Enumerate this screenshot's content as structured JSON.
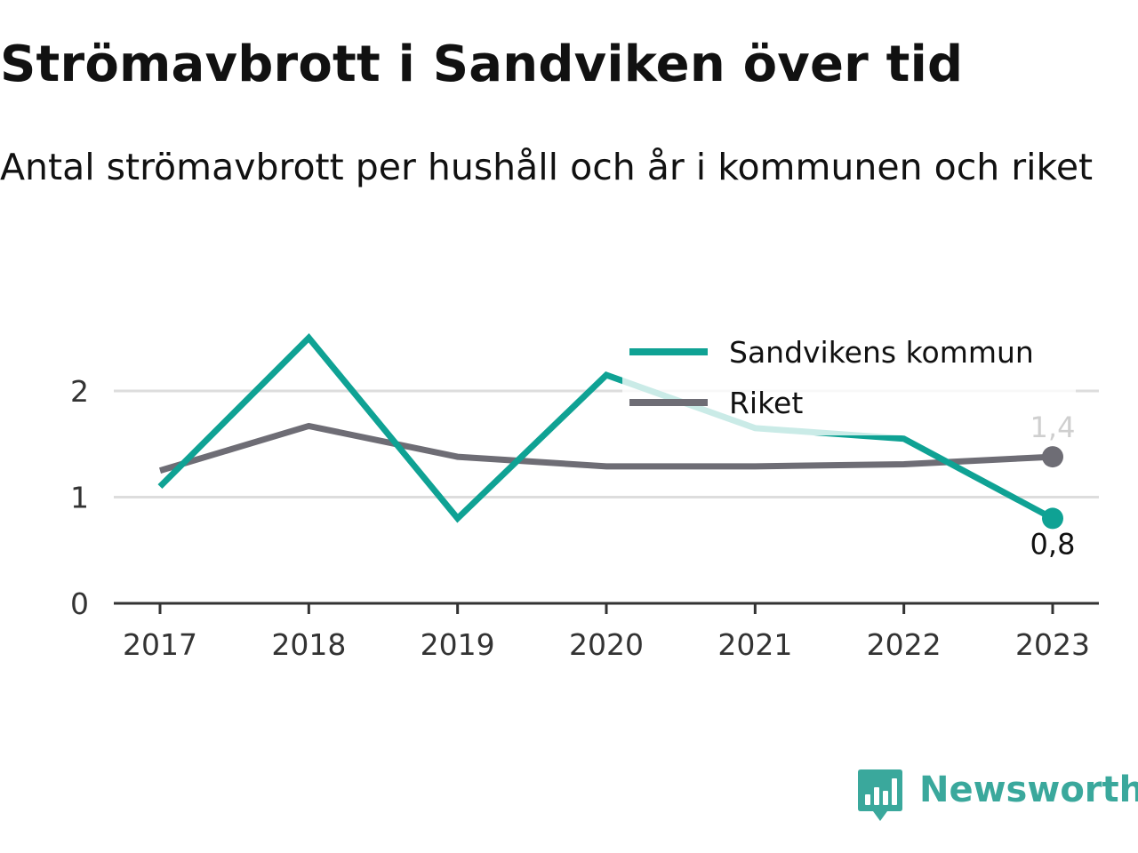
{
  "title": "Strömavbrott i Sandviken över tid",
  "subtitle": "Antal strömavbrott per hushåll och år i kommunen och riket",
  "logo": {
    "text": "Newsworthy",
    "icon": "newsworthy-bar-chart-icon",
    "color": "#3aa89c"
  },
  "chart_data": {
    "type": "line",
    "x": [
      "2017",
      "2018",
      "2019",
      "2020",
      "2021",
      "2022",
      "2023"
    ],
    "ylim": [
      0,
      2.6
    ],
    "yticks": [
      "0",
      "1",
      "2"
    ],
    "grid": true,
    "legend_position": "top-right",
    "series": [
      {
        "name": "Sandvikens kommun",
        "color": "#0fa294",
        "values": [
          1.1,
          2.5,
          0.8,
          2.15,
          1.65,
          1.55,
          0.8
        ],
        "end_label": "0,8"
      },
      {
        "name": "Riket",
        "color": "#6e6d75",
        "values": [
          1.25,
          1.67,
          1.38,
          1.29,
          1.29,
          1.31,
          1.38
        ],
        "end_label": "1,4"
      }
    ]
  }
}
